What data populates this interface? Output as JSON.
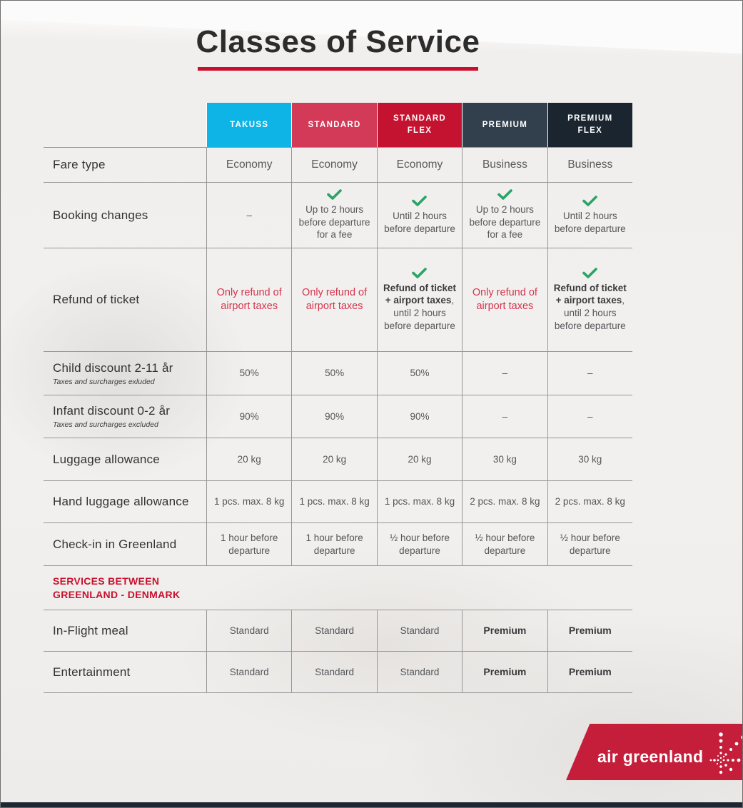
{
  "page": {
    "title": "Classes of Service"
  },
  "colors": {
    "accent_red": "#c8102e",
    "takuss_cyan": "#0fb4e7",
    "standard_pink": "#d23a57",
    "standard_flex_red": "#c41331",
    "premium_slate": "#32404e",
    "premium_flex_navy": "#1a2530",
    "check_green": "#29a566",
    "red_text": "#d5344e",
    "logo_red": "#c41e3a",
    "bottom_bar_navy": "#1d2733"
  },
  "columns": [
    {
      "label": "TAKUSS"
    },
    {
      "label": "STANDARD"
    },
    {
      "label": "STANDARD FLEX"
    },
    {
      "label": "PREMIUM"
    },
    {
      "label": "PREMIUM FLEX"
    }
  ],
  "rows": [
    {
      "type": "fare",
      "label": "Fare type",
      "cells": [
        {
          "text": "Economy"
        },
        {
          "text": "Economy"
        },
        {
          "text": "Economy"
        },
        {
          "text": "Business"
        },
        {
          "text": "Business"
        }
      ]
    },
    {
      "type": "data",
      "label": "Booking changes",
      "cells": [
        {
          "text": "–"
        },
        {
          "check": true,
          "text": "Up to 2 hours before departure for a fee"
        },
        {
          "check": true,
          "text": "Until 2 hours before departure"
        },
        {
          "check": true,
          "text": "Up to 2 hours before departure for a fee"
        },
        {
          "check": true,
          "text": "Until 2 hours before departure"
        }
      ]
    },
    {
      "type": "data",
      "label": "Refund of ticket",
      "cells": [
        {
          "red": true,
          "text": "Only refund of airport taxes"
        },
        {
          "red": true,
          "text": "Only refund of airport taxes"
        },
        {
          "check": true,
          "bold": "Refund of ticket + airport taxes",
          "text": ", until 2 hours before departure"
        },
        {
          "red": true,
          "text": "Only refund of airport taxes"
        },
        {
          "check": true,
          "bold": "Refund of ticket + airport taxes",
          "text": ", until 2 hours before departure"
        }
      ]
    },
    {
      "type": "data",
      "label": "Child discount 2-11 år",
      "sub": "Taxes and surcharges exluded",
      "cells": [
        {
          "text": "50%"
        },
        {
          "text": "50%"
        },
        {
          "text": "50%"
        },
        {
          "text": "–"
        },
        {
          "text": "–"
        }
      ]
    },
    {
      "type": "data",
      "label": "Infant discount 0-2 år",
      "sub": "Taxes and surcharges excluded",
      "cells": [
        {
          "text": "90%"
        },
        {
          "text": "90%"
        },
        {
          "text": "90%"
        },
        {
          "text": "–"
        },
        {
          "text": "–"
        }
      ]
    },
    {
      "type": "data",
      "label": "Luggage allowance",
      "cells": [
        {
          "text": "20 kg"
        },
        {
          "text": "20 kg"
        },
        {
          "text": "20 kg"
        },
        {
          "text": "30 kg"
        },
        {
          "text": "30 kg"
        }
      ]
    },
    {
      "type": "data",
      "label": "Hand luggage allowance",
      "cells": [
        {
          "text": "1 pcs. max. 8 kg"
        },
        {
          "text": "1 pcs. max. 8 kg"
        },
        {
          "text": "1 pcs. max. 8 kg"
        },
        {
          "text": "2 pcs. max. 8 kg"
        },
        {
          "text": "2 pcs. max. 8 kg"
        }
      ]
    },
    {
      "type": "data",
      "label": "Check-in in Greenland",
      "cells": [
        {
          "text": "1 hour before departure"
        },
        {
          "text": "1 hour before departure"
        },
        {
          "text": "½ hour before departure"
        },
        {
          "text": "½ hour before departure"
        },
        {
          "text": "½ hour before departure"
        }
      ]
    },
    {
      "type": "section",
      "lines": [
        "SERVICES BETWEEN",
        "GREENLAND - DENMARK"
      ]
    },
    {
      "type": "data",
      "label": "In-Flight meal",
      "cells": [
        {
          "text": "Standard"
        },
        {
          "text": "Standard"
        },
        {
          "text": "Standard"
        },
        {
          "text": "Premium",
          "strong": true
        },
        {
          "text": "Premium",
          "strong": true
        }
      ]
    },
    {
      "type": "data",
      "label": "Entertainment",
      "cells": [
        {
          "text": "Standard"
        },
        {
          "text": "Standard"
        },
        {
          "text": "Standard"
        },
        {
          "text": "Premium",
          "strong": true
        },
        {
          "text": "Premium",
          "strong": true
        }
      ]
    }
  ],
  "logo": {
    "brand": "air greenland"
  }
}
